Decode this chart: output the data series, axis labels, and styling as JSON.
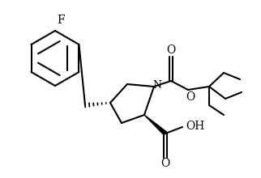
{
  "background_color": "#ffffff",
  "line_color": "#000000",
  "line_width": 1.5,
  "figsize": [
    3.22,
    2.2
  ],
  "dpi": 100,
  "xlim": [
    0,
    322
  ],
  "ylim": [
    0,
    220
  ]
}
